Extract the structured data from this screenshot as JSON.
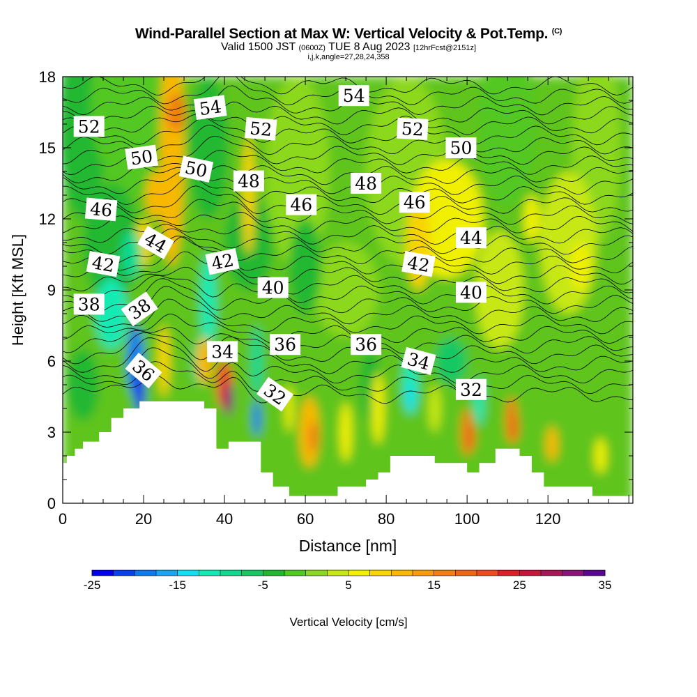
{
  "title": {
    "main": "Wind-Parallel Section at Max W: Vertical Velocity & Pot.Temp.",
    "copyright": "(C)",
    "valid_prefix": "Valid 1500 JST",
    "valid_utc": "(0600Z)",
    "valid_date": "TUE 8 Aug 2023",
    "forecast": "[12hrFcst@2151z]",
    "indices": "i,j,k,angle=27,28,24,358"
  },
  "chart_data": {
    "type": "heatmap",
    "xlabel": "Distance [nm]",
    "ylabel": "Height [Kft MSL]",
    "xlim": [
      0,
      141
    ],
    "ylim": [
      0,
      18
    ],
    "x_ticks": [
      0,
      20,
      40,
      60,
      80,
      100,
      120
    ],
    "y_ticks": [
      0,
      3,
      6,
      9,
      12,
      15,
      18
    ],
    "colorbar": {
      "label": "Vertical Velocity [cm/s]",
      "range": [
        -25,
        35
      ],
      "tick_labels": [
        "-25",
        "-15",
        "-5",
        "5",
        "15",
        "25",
        "35"
      ],
      "colors": [
        "#0000f0",
        "#0840f0",
        "#0f78f0",
        "#15a8f0",
        "#10e0f0",
        "#12eab4",
        "#10d990",
        "#14c864",
        "#20b832",
        "#52c822",
        "#8cd81c",
        "#c8e814",
        "#f0f000",
        "#f8d400",
        "#f8b800",
        "#f89c08",
        "#f08010",
        "#f06418",
        "#f04820",
        "#e01e28",
        "#c8143c",
        "#a8145a",
        "#88147a",
        "#5a0890"
      ]
    },
    "terrain_kft": [
      [
        0,
        1.7
      ],
      [
        1,
        1.7
      ],
      [
        1,
        2.0
      ],
      [
        3,
        2.0
      ],
      [
        3,
        2.3
      ],
      [
        5,
        2.3
      ],
      [
        5,
        2.6
      ],
      [
        9,
        2.6
      ],
      [
        9,
        3.0
      ],
      [
        12,
        3.0
      ],
      [
        12,
        3.6
      ],
      [
        15,
        3.6
      ],
      [
        15,
        4.0
      ],
      [
        19,
        4.0
      ],
      [
        19,
        4.3
      ],
      [
        35,
        4.3
      ],
      [
        35,
        4.0
      ],
      [
        38,
        4.0
      ],
      [
        38,
        2.3
      ],
      [
        41,
        2.3
      ],
      [
        41,
        2.6
      ],
      [
        49,
        2.6
      ],
      [
        49,
        1.3
      ],
      [
        52,
        1.3
      ],
      [
        52,
        0.7
      ],
      [
        56,
        0.7
      ],
      [
        56,
        0.3
      ],
      [
        60,
        0.3
      ],
      [
        60,
        0.3
      ],
      [
        68,
        0.3
      ],
      [
        68,
        0.7
      ],
      [
        75,
        0.7
      ],
      [
        75,
        1.0
      ],
      [
        78,
        1.0
      ],
      [
        78,
        1.3
      ],
      [
        81,
        1.3
      ],
      [
        81,
        2.0
      ],
      [
        92,
        2.0
      ],
      [
        92,
        1.7
      ],
      [
        100,
        1.7
      ],
      [
        100,
        1.3
      ],
      [
        103,
        1.3
      ],
      [
        103,
        1.7
      ],
      [
        107,
        1.7
      ],
      [
        107,
        2.3
      ],
      [
        113,
        2.3
      ],
      [
        113,
        2.0
      ],
      [
        116,
        2.0
      ],
      [
        116,
        1.3
      ],
      [
        119,
        1.3
      ],
      [
        119,
        0.7
      ],
      [
        131,
        0.7
      ],
      [
        131,
        0.3
      ],
      [
        141,
        0.3
      ]
    ],
    "theta_labels": [
      {
        "value": "52",
        "x": 6.5,
        "y": 15.9,
        "angle": 0
      },
      {
        "value": "54",
        "x": 36.5,
        "y": 16.7,
        "angle": 8
      },
      {
        "value": "54",
        "x": 72,
        "y": 17.2,
        "angle": 0
      },
      {
        "value": "52",
        "x": 49,
        "y": 15.8,
        "angle": -5
      },
      {
        "value": "52",
        "x": 86.5,
        "y": 15.8,
        "angle": -3
      },
      {
        "value": "50",
        "x": 19.5,
        "y": 14.6,
        "angle": 8
      },
      {
        "value": "50",
        "x": 33,
        "y": 14.1,
        "angle": -12
      },
      {
        "value": "50",
        "x": 98.5,
        "y": 15.0,
        "angle": 0
      },
      {
        "value": "48",
        "x": 46,
        "y": 13.6,
        "angle": 0
      },
      {
        "value": "48",
        "x": 75,
        "y": 13.5,
        "angle": 0
      },
      {
        "value": "46",
        "x": 9.5,
        "y": 12.4,
        "angle": -5
      },
      {
        "value": "46",
        "x": 59,
        "y": 12.6,
        "angle": 0
      },
      {
        "value": "46",
        "x": 87,
        "y": 12.7,
        "angle": 0
      },
      {
        "value": "44",
        "x": 23,
        "y": 11.0,
        "angle": -30
      },
      {
        "value": "44",
        "x": 101,
        "y": 11.2,
        "angle": 0
      },
      {
        "value": "42",
        "x": 10,
        "y": 10.1,
        "angle": -10
      },
      {
        "value": "42",
        "x": 39.5,
        "y": 10.2,
        "angle": 12
      },
      {
        "value": "42",
        "x": 88,
        "y": 10.1,
        "angle": -10
      },
      {
        "value": "40",
        "x": 52,
        "y": 9.1,
        "angle": 0
      },
      {
        "value": "40",
        "x": 101,
        "y": 8.9,
        "angle": 0
      },
      {
        "value": "38",
        "x": 6.5,
        "y": 8.4,
        "angle": 0
      },
      {
        "value": "38",
        "x": 19,
        "y": 8.2,
        "angle": 35
      },
      {
        "value": "36",
        "x": 55,
        "y": 6.7,
        "angle": 0
      },
      {
        "value": "36",
        "x": 75,
        "y": 6.7,
        "angle": 0
      },
      {
        "value": "36",
        "x": 20,
        "y": 5.6,
        "angle": -40
      },
      {
        "value": "34",
        "x": 39.5,
        "y": 6.4,
        "angle": 0
      },
      {
        "value": "34",
        "x": 88,
        "y": 6.0,
        "angle": -15
      },
      {
        "value": "32",
        "x": 52.5,
        "y": 4.6,
        "angle": -35
      },
      {
        "value": "32",
        "x": 101,
        "y": 4.8,
        "angle": 0
      }
    ]
  }
}
